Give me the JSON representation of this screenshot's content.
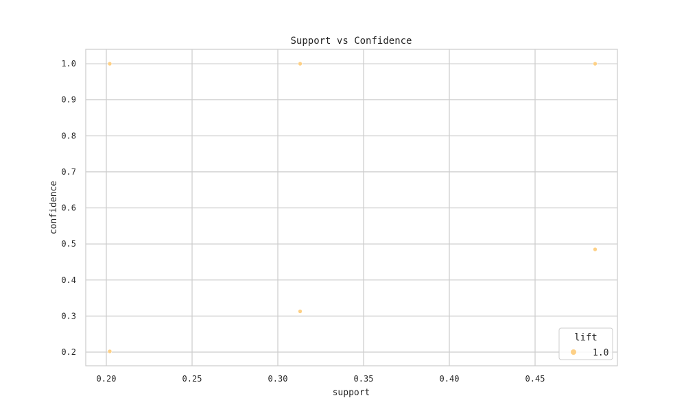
{
  "chart_data": {
    "type": "scatter",
    "title": "Support vs Confidence",
    "xlabel": "support",
    "ylabel": "confidence",
    "xlim": [
      0.188,
      0.498
    ],
    "ylim": [
      0.162,
      1.04
    ],
    "x_ticks": [
      0.2,
      0.25,
      0.3,
      0.35,
      0.4,
      0.45
    ],
    "x_tick_labels": [
      "0.20",
      "0.25",
      "0.30",
      "0.35",
      "0.40",
      "0.45"
    ],
    "y_ticks": [
      0.2,
      0.3,
      0.4,
      0.5,
      0.6,
      0.7,
      0.8,
      0.9,
      1.0
    ],
    "y_tick_labels": [
      "0.2",
      "0.3",
      "0.4",
      "0.5",
      "0.6",
      "0.7",
      "0.8",
      "0.9",
      "1.0"
    ],
    "grid": true,
    "legend": {
      "title": "lift",
      "placement": "bottom-right",
      "entries": [
        {
          "label": "1.0",
          "color": "#fdd086"
        }
      ]
    },
    "marker_color": "#fdd086",
    "points": [
      {
        "x": 0.202,
        "y": 1.0,
        "lift": 1.0
      },
      {
        "x": 0.202,
        "y": 0.202,
        "lift": 1.0
      },
      {
        "x": 0.313,
        "y": 1.0,
        "lift": 1.0
      },
      {
        "x": 0.313,
        "y": 0.313,
        "lift": 1.0
      },
      {
        "x": 0.485,
        "y": 1.0,
        "lift": 1.0
      },
      {
        "x": 0.485,
        "y": 0.485,
        "lift": 1.0
      }
    ]
  }
}
